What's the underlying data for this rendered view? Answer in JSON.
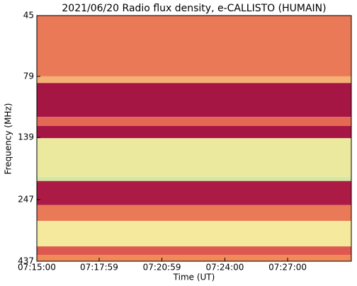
{
  "chart_data": {
    "type": "heatmap",
    "title": "2021/06/20  Radio flux density, e-CALLISTO (HUMAIN)",
    "xlabel": "Time (UT)",
    "ylabel": "Frequency (MHz)",
    "y_edges": [
      45,
      79,
      84,
      115,
      125,
      140,
      200,
      208,
      260,
      301,
      381,
      412,
      437
    ],
    "values": [
      0.45,
      0.6,
      0.05,
      0.4,
      0.05,
      0.85,
      0.97,
      0.08,
      0.45,
      0.8,
      0.35,
      0.5
    ],
    "colors": [
      "#9b0d43",
      "#d0384a",
      "#f08a5a",
      "#fde99a",
      "#cfe8a4"
    ],
    "ylim": [
      45,
      437
    ],
    "y_scale": "log",
    "y_inverted": true,
    "yticks": [
      45,
      79,
      139,
      247,
      437
    ],
    "xlim": [
      26100,
      27003
    ],
    "xticks": [
      {
        "value": 26100,
        "label": "07:15:00"
      },
      {
        "value": 26279,
        "label": "07:17:59"
      },
      {
        "value": 26459,
        "label": "07:20:59"
      },
      {
        "value": 26640,
        "label": "07:24:00"
      },
      {
        "value": 26820,
        "label": "07:27:00"
      }
    ]
  }
}
